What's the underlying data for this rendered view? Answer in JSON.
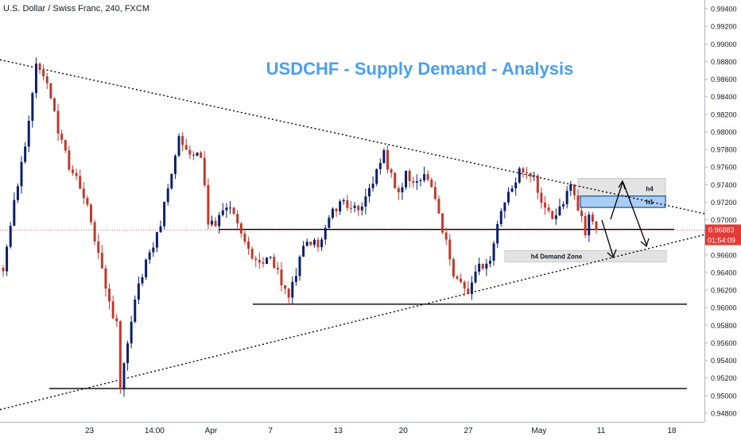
{
  "symbol_title": "U.S. Dollar / Swiss Franc, 240, FXCM",
  "analysis_title": "USDCHF - Supply Demand - Analysis",
  "colors": {
    "bull": "#0b1f6b",
    "bear": "#c0392b",
    "price_tag": "#e53935",
    "title": "#4a9ff0",
    "h1_zone": "#a9cdf3",
    "gray_zone": "#e3e3e3"
  },
  "chart_data": {
    "type": "candlestick",
    "price_axis": {
      "min": 0.947,
      "max": 0.995,
      "ticks": [
        "0.99400",
        "0.99200",
        "0.99000",
        "0.98800",
        "0.98600",
        "0.98400",
        "0.98200",
        "0.98000",
        "0.97800",
        "0.97600",
        "0.97400",
        "0.97200",
        "0.97000",
        "0.96600",
        "0.96400",
        "0.96200",
        "0.96000",
        "0.95800",
        "0.95600",
        "0.95400",
        "0.95200",
        "0.95000",
        "0.94800"
      ]
    },
    "time_axis": {
      "labels": [
        "23",
        "14:00",
        "Apr",
        "7",
        "13",
        "20",
        "27",
        "May",
        "11",
        "18"
      ]
    },
    "current_price": {
      "value": 0.96883,
      "label": "0.96883",
      "countdown": "01:54:09"
    },
    "anchors": [
      [
        0,
        0.964
      ],
      [
        3,
        0.972
      ],
      [
        6,
        0.978
      ],
      [
        9,
        0.988
      ],
      [
        12,
        0.986
      ],
      [
        15,
        0.98
      ],
      [
        18,
        0.976
      ],
      [
        21,
        0.974
      ],
      [
        24,
        0.97
      ],
      [
        26,
        0.966
      ],
      [
        28,
        0.962
      ],
      [
        31,
        0.958
      ],
      [
        32,
        0.9512
      ],
      [
        34,
        0.956
      ],
      [
        37,
        0.963
      ],
      [
        40,
        0.966
      ],
      [
        43,
        0.969
      ],
      [
        45,
        0.974
      ],
      [
        48,
        0.979
      ],
      [
        51,
        0.978
      ],
      [
        54,
        0.977
      ],
      [
        56,
        0.97
      ],
      [
        58,
        0.969
      ],
      [
        60,
        0.9715
      ],
      [
        62,
        0.971
      ],
      [
        65,
        0.969
      ],
      [
        67,
        0.9665
      ],
      [
        70,
        0.9652
      ],
      [
        73,
        0.966
      ],
      [
        75,
        0.9638
      ],
      [
        78,
        0.9608
      ],
      [
        80,
        0.964
      ],
      [
        83,
        0.968
      ],
      [
        86,
        0.967
      ],
      [
        89,
        0.97
      ],
      [
        92,
        0.972
      ],
      [
        95,
        0.971
      ],
      [
        98,
        0.972
      ],
      [
        101,
        0.9745
      ],
      [
        104,
        0.9775
      ],
      [
        106,
        0.975
      ],
      [
        108,
        0.973
      ],
      [
        110,
        0.9755
      ],
      [
        112,
        0.974
      ],
      [
        115,
        0.975
      ],
      [
        118,
        0.9725
      ],
      [
        120,
        0.969
      ],
      [
        123,
        0.964
      ],
      [
        125,
        0.963
      ],
      [
        127,
        0.961
      ],
      [
        129,
        0.964
      ],
      [
        131,
        0.965
      ],
      [
        133,
        0.9655
      ],
      [
        135,
        0.97
      ],
      [
        137,
        0.972
      ],
      [
        139,
        0.974
      ],
      [
        141,
        0.9755
      ],
      [
        143,
        0.9755
      ],
      [
        145,
        0.9745
      ],
      [
        147,
        0.9725
      ],
      [
        149,
        0.971
      ],
      [
        151,
        0.97
      ],
      [
        153,
        0.972
      ],
      [
        155,
        0.9735
      ],
      [
        157,
        0.971
      ],
      [
        159,
        0.9688
      ],
      [
        160,
        0.97
      ],
      [
        162,
        0.9688
      ]
    ],
    "levels": [
      {
        "name": "resistance-level",
        "price": 0.9689
      },
      {
        "name": "support-level",
        "price": 0.9604
      },
      {
        "name": "major-support-level",
        "price": 0.9508
      }
    ],
    "trendlines": [
      {
        "name": "descending-trendline",
        "from": [
          0,
          0.9882
        ],
        "to": [
          1,
          0.9707
        ]
      },
      {
        "name": "ascending-trendline",
        "from": [
          0,
          0.9484
        ],
        "to": [
          1,
          0.9683
        ]
      }
    ],
    "zones": [
      {
        "name": "h4-supply-zone",
        "label": "h4",
        "top": 0.9747,
        "bottom": 0.9724
      },
      {
        "name": "h1-supply-zone",
        "label": "h1",
        "top": 0.9727,
        "bottom": 0.9714
      },
      {
        "name": "h4-demand-zone",
        "label": "h4 Demand Zone",
        "top": 0.9665,
        "bottom": 0.9652
      }
    ]
  }
}
